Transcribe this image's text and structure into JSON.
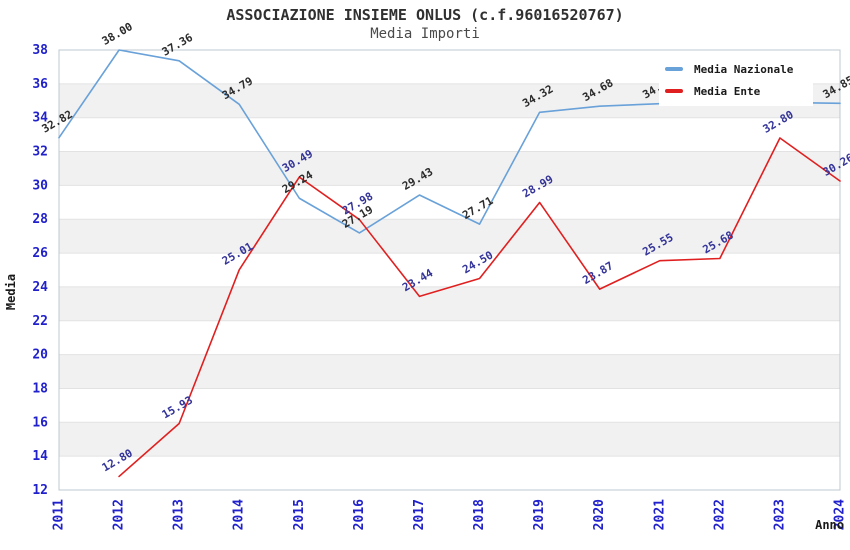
{
  "header": {
    "title": "ASSOCIAZIONE INSIEME ONLUS (c.f.96016520767)",
    "subtitle": "Media Importi"
  },
  "chart_data": {
    "type": "line",
    "x": [
      "2011",
      "2012",
      "2013",
      "2014",
      "2015",
      "2016",
      "2017",
      "2018",
      "2019",
      "2020",
      "2021",
      "2022",
      "2023",
      "2024"
    ],
    "series": [
      {
        "name": "Media Nazionale",
        "color": "#69a1d9",
        "label_color": "#2b2b2b",
        "values": [
          32.82,
          38.0,
          37.36,
          34.79,
          29.24,
          27.19,
          29.43,
          27.71,
          34.32,
          34.68,
          34.83,
          34.85,
          34.9,
          34.85
        ]
      },
      {
        "name": "Media Ente",
        "color": "#e02020",
        "label_color": "#333399",
        "values": [
          null,
          12.8,
          15.93,
          25.01,
          30.49,
          27.98,
          23.44,
          24.5,
          28.99,
          23.87,
          25.55,
          25.68,
          32.8,
          30.26
        ]
      }
    ],
    "xlabel": "Anno",
    "ylabel": "Media",
    "ylim": [
      12,
      38
    ],
    "ytick_step": 2,
    "grid": true,
    "legend_position": "top-right",
    "band_colors": [
      "#ffffff",
      "#f1f1f1"
    ],
    "tick_color": "#2121cc",
    "grid_color": "#e2e2e2",
    "border_color": "#bfc8d2"
  }
}
